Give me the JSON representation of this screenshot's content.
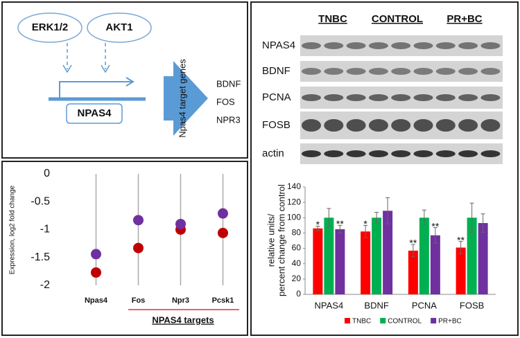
{
  "diagram": {
    "kinases": [
      "ERK1/2",
      "AKT1"
    ],
    "gene": "NPAS4",
    "targets_label": "Npas4 target genes",
    "targets": [
      "BDNF",
      "FOS",
      "NPR3"
    ]
  },
  "blot": {
    "groups": [
      "TNBC",
      "CONTROL",
      "PR+BC"
    ],
    "rows": [
      "NPAS4",
      "BDNF",
      "PCNA",
      "FOSB",
      "actin"
    ]
  },
  "chart_data": [
    {
      "type": "dot",
      "categories": [
        "Npas4",
        "Fos",
        "Npr3",
        "Pcsk1"
      ],
      "series": [
        {
          "color": "#c00000",
          "values": [
            -1.77,
            -1.33,
            -1.0,
            -1.06
          ]
        },
        {
          "color": "#7030a0",
          "values": [
            -1.44,
            -0.83,
            -0.9,
            -0.71
          ]
        }
      ],
      "ylim": [
        -2,
        0
      ],
      "yticks": [
        0,
        -0.5,
        -1,
        -1.5,
        -2
      ],
      "ylabel": "Expression, log2 fold change",
      "annotation": "NPAS4 targets"
    },
    {
      "type": "bar",
      "categories": [
        "NPAS4",
        "BDNF",
        "PCNA",
        "FOSB"
      ],
      "series": [
        {
          "name": "TNBC",
          "color": "#ff0000",
          "values": [
            86,
            82,
            57,
            61
          ],
          "errors": [
            3,
            8,
            8,
            8
          ],
          "significance": [
            "*",
            "*",
            "**",
            "**"
          ]
        },
        {
          "name": "CONTROL",
          "color": "#00b050",
          "values": [
            100,
            100,
            100,
            100
          ],
          "errors": [
            12,
            7,
            10,
            19
          ],
          "significance": [
            null,
            null,
            null,
            null
          ]
        },
        {
          "name": "PR+BC",
          "color": "#7030a0",
          "values": [
            85,
            109,
            77,
            93
          ],
          "errors": [
            5,
            17,
            10,
            12
          ],
          "significance": [
            "**",
            null,
            "**",
            null
          ]
        }
      ],
      "ylim": [
        0,
        140
      ],
      "yticks": [
        0,
        20,
        40,
        60,
        80,
        100,
        120,
        140
      ],
      "ylabel": [
        "relative units/",
        "percent change from control"
      ]
    }
  ]
}
